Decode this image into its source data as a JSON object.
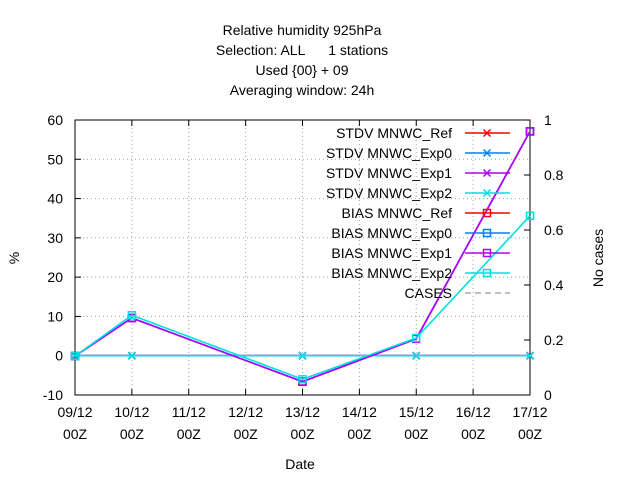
{
  "chart_data": {
    "type": "line",
    "title_lines": [
      "Relative humidity 925hPa",
      "Selection: ALL      1 stations",
      "Used {00} + 09",
      "Averaging window: 24h"
    ],
    "xlabel": "Date",
    "ylabel": "%",
    "y2label": "No cases",
    "x_ticks": [
      {
        "line1": "09/12",
        "line2": "00Z"
      },
      {
        "line1": "10/12",
        "line2": "00Z"
      },
      {
        "line1": "11/12",
        "line2": "00Z"
      },
      {
        "line1": "12/12",
        "line2": "00Z"
      },
      {
        "line1": "13/12",
        "line2": "00Z"
      },
      {
        "line1": "14/12",
        "line2": "00Z"
      },
      {
        "line1": "15/12",
        "line2": "00Z"
      },
      {
        "line1": "16/12",
        "line2": "00Z"
      },
      {
        "line1": "17/12",
        "line2": "00Z"
      }
    ],
    "xlim": [
      0,
      8
    ],
    "ylim": [
      -10,
      60
    ],
    "y_ticks": [
      -10,
      0,
      10,
      20,
      30,
      40,
      50,
      60
    ],
    "y2lim": [
      0,
      1
    ],
    "y2_ticks": [
      "0",
      "0.2",
      "0.4",
      "0.6",
      "0.8",
      "1"
    ],
    "y2_tick_values": [
      0,
      0.2,
      0.4,
      0.6,
      0.8,
      1
    ],
    "grid": true,
    "legend_position": "top-right",
    "series": [
      {
        "name": "STDV MNWC_Ref",
        "color": "#ff0000",
        "marker": "x",
        "x": [
          0,
          1,
          4,
          6,
          8
        ],
        "y": [
          0,
          0,
          0,
          0,
          0
        ]
      },
      {
        "name": "STDV MNWC_Exp0",
        "color": "#0080ff",
        "marker": "x",
        "x": [
          0,
          1,
          4,
          6,
          8
        ],
        "y": [
          0,
          0,
          0,
          0,
          0
        ]
      },
      {
        "name": "STDV MNWC_Exp1",
        "color": "#b000ff",
        "marker": "x",
        "x": [
          0,
          1,
          4,
          6,
          8
        ],
        "y": [
          0,
          0,
          0,
          0,
          0
        ]
      },
      {
        "name": "STDV MNWC_Exp2",
        "color": "#00e0e0",
        "marker": "x",
        "x": [
          0,
          1,
          4,
          6,
          8
        ],
        "y": [
          0,
          0,
          0,
          0,
          0
        ]
      },
      {
        "name": "BIAS MNWC_Ref",
        "color": "#ff0000",
        "marker": "square",
        "x": [
          0,
          1,
          4,
          6,
          8
        ],
        "y": [
          -0.1,
          9.6,
          -6.6,
          4.3,
          57.1
        ]
      },
      {
        "name": "BIAS MNWC_Exp0",
        "color": "#0080ff",
        "marker": "square",
        "x": [
          0,
          1,
          4,
          6,
          8
        ],
        "y": [
          -0.1,
          9.6,
          -6.6,
          4.3,
          57.1
        ]
      },
      {
        "name": "BIAS MNWC_Exp1",
        "color": "#b000ff",
        "marker": "square",
        "x": [
          0,
          1,
          4,
          6,
          8
        ],
        "y": [
          -0.1,
          9.6,
          -6.6,
          4.3,
          57.1
        ]
      },
      {
        "name": "BIAS MNWC_Exp2",
        "color": "#00e0e0",
        "marker": "square",
        "x": [
          0,
          1,
          4,
          6,
          8
        ],
        "y": [
          -0.1,
          10.3,
          -6.0,
          4.5,
          35.6
        ]
      },
      {
        "name": "CASES",
        "color": "#808080",
        "marker": "none",
        "dashed": true,
        "x": [],
        "y": []
      }
    ]
  }
}
